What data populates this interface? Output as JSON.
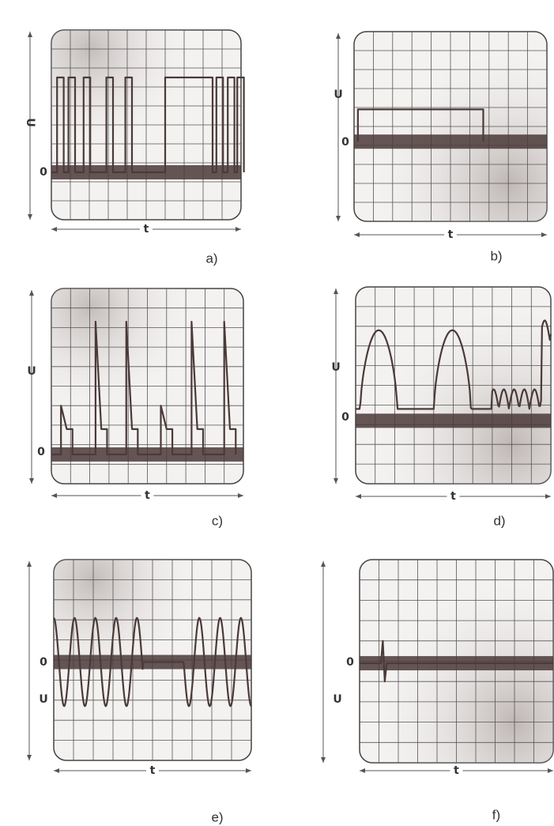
{
  "panels": [
    {
      "label": "a)",
      "y_axis": "U",
      "zero": "0",
      "x_axis": "t"
    },
    {
      "label": "b)",
      "y_axis": "U",
      "zero": "0",
      "x_axis": "t"
    },
    {
      "label": "c)",
      "y_axis": "U",
      "zero": "0",
      "x_axis": "t"
    },
    {
      "label": "d)",
      "y_axis": "U",
      "zero": "0",
      "x_axis": "t"
    },
    {
      "label": "e)",
      "y_axis": "U",
      "zero": "0",
      "x_axis": "t"
    },
    {
      "label": "f)",
      "y_axis": "U",
      "zero": "0",
      "x_axis": "t"
    }
  ]
}
